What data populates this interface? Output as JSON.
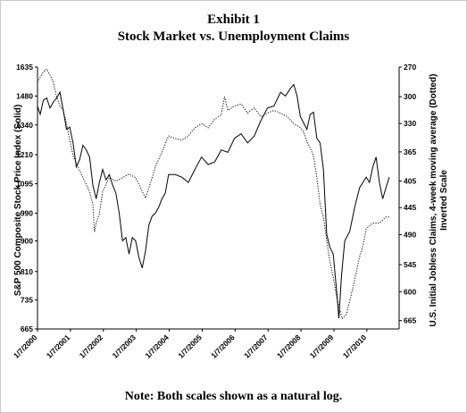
{
  "header": {
    "exhibit": "Exhibit 1",
    "title": "Stock Market vs. Unemployment Claims"
  },
  "footer": {
    "note": "Note: Both scales shown as a natural log."
  },
  "chart_data": {
    "type": "line",
    "title": "Stock Market vs. Unemployment Claims",
    "ylabel_left": "S&P 500 Composite Stock Price Index (Solid)",
    "ylabel_right_line1": "U.S. Initial Jobless Claims, 4-week moving average (Dotted)",
    "ylabel_right_line2": "Inverted Scale",
    "y_left_scale": "log",
    "y_right_scale": "log, inverted",
    "ylim_left": [
      665,
      1635
    ],
    "ylim_right": [
      685,
      270
    ],
    "x_ticks": [
      "1/7/2000",
      "1/7/2001",
      "1/7/2002",
      "1/7/2003",
      "1/7/2004",
      "1/7/2005",
      "1/7/2006",
      "1/7/2007",
      "1/7/2008",
      "1/7/2009",
      "1/7/2010"
    ],
    "y_left_ticks": [
      1635,
      1480,
      1340,
      1210,
      1095,
      990,
      900,
      810,
      735,
      665
    ],
    "y_right_ticks": [
      270,
      300,
      330,
      365,
      405,
      445,
      490,
      545,
      600,
      665
    ],
    "grid": false,
    "legend": "none",
    "series": [
      {
        "style": "solid",
        "axis": "left",
        "x": [
          2000.02,
          2000.1,
          2000.2,
          2000.3,
          2000.4,
          2000.5,
          2000.6,
          2000.7,
          2000.8,
          2000.9,
          2001.0,
          2001.1,
          2001.2,
          2001.3,
          2001.4,
          2001.5,
          2001.6,
          2001.7,
          2001.8,
          2001.9,
          2002.0,
          2002.1,
          2002.2,
          2002.3,
          2002.4,
          2002.5,
          2002.6,
          2002.7,
          2002.8,
          2002.9,
          2003.0,
          2003.1,
          2003.2,
          2003.3,
          2003.4,
          2003.5,
          2003.6,
          2003.7,
          2003.8,
          2003.9,
          2004.0,
          2004.2,
          2004.4,
          2004.6,
          2004.8,
          2005.0,
          2005.2,
          2005.4,
          2005.6,
          2005.8,
          2006.0,
          2006.2,
          2006.4,
          2006.6,
          2006.8,
          2007.0,
          2007.2,
          2007.4,
          2007.55,
          2007.7,
          2007.8,
          2007.9,
          2008.0,
          2008.1,
          2008.2,
          2008.3,
          2008.4,
          2008.5,
          2008.6,
          2008.7,
          2008.8,
          2008.9,
          2009.0,
          2009.1,
          2009.17,
          2009.25,
          2009.35,
          2009.5,
          2009.65,
          2009.8,
          2009.9,
          2010.0,
          2010.1,
          2010.2,
          2010.3,
          2010.4,
          2010.5,
          2010.6,
          2010.7
        ],
        "y": [
          1430,
          1390,
          1460,
          1470,
          1420,
          1450,
          1470,
          1500,
          1410,
          1320,
          1330,
          1260,
          1160,
          1190,
          1250,
          1230,
          1200,
          1090,
          1040,
          1100,
          1150,
          1110,
          1130,
          1090,
          1060,
          990,
          900,
          910,
          860,
          910,
          900,
          850,
          820,
          870,
          950,
          980,
          990,
          1010,
          1040,
          1060,
          1130,
          1130,
          1120,
          1100,
          1150,
          1200,
          1170,
          1180,
          1230,
          1220,
          1280,
          1300,
          1260,
          1290,
          1360,
          1420,
          1430,
          1500,
          1480,
          1520,
          1540,
          1480,
          1380,
          1350,
          1320,
          1390,
          1400,
          1280,
          1260,
          1150,
          920,
          880,
          860,
          760,
          690,
          800,
          900,
          930,
          1010,
          1080,
          1100,
          1120,
          1100,
          1160,
          1200,
          1100,
          1040,
          1080,
          1120
        ]
      },
      {
        "style": "dotted",
        "axis": "right",
        "x": [
          2000.02,
          2000.1,
          2000.2,
          2000.3,
          2000.4,
          2000.5,
          2000.6,
          2000.7,
          2000.8,
          2000.9,
          2001.0,
          2001.1,
          2001.2,
          2001.3,
          2001.4,
          2001.5,
          2001.6,
          2001.7,
          2001.75,
          2001.8,
          2001.9,
          2002.0,
          2002.2,
          2002.4,
          2002.6,
          2002.8,
          2003.0,
          2003.1,
          2003.2,
          2003.3,
          2003.4,
          2003.5,
          2003.6,
          2003.8,
          2004.0,
          2004.2,
          2004.4,
          2004.6,
          2004.8,
          2005.0,
          2005.2,
          2005.4,
          2005.6,
          2005.7,
          2005.8,
          2006.0,
          2006.2,
          2006.4,
          2006.6,
          2006.8,
          2007.0,
          2007.2,
          2007.4,
          2007.6,
          2007.8,
          2008.0,
          2008.1,
          2008.2,
          2008.3,
          2008.4,
          2008.5,
          2008.6,
          2008.7,
          2008.8,
          2008.9,
          2009.0,
          2009.1,
          2009.2,
          2009.27,
          2009.4,
          2009.5,
          2009.6,
          2009.7,
          2009.8,
          2009.9,
          2010.0,
          2010.2,
          2010.4,
          2010.6,
          2010.7
        ],
        "y": [
          285,
          280,
          275,
          272,
          278,
          285,
          300,
          310,
          315,
          330,
          350,
          370,
          380,
          390,
          400,
          410,
          420,
          440,
          485,
          470,
          455,
          420,
          400,
          405,
          400,
          395,
          400,
          410,
          420,
          430,
          415,
          400,
          385,
          365,
          345,
          348,
          350,
          345,
          335,
          330,
          335,
          325,
          320,
          300,
          315,
          310,
          308,
          318,
          312,
          322,
          318,
          315,
          318,
          322,
          330,
          335,
          340,
          352,
          360,
          370,
          400,
          440,
          460,
          500,
          540,
          570,
          610,
          640,
          660,
          650,
          620,
          590,
          560,
          530,
          510,
          480,
          470,
          470,
          460,
          460
        ]
      }
    ]
  }
}
